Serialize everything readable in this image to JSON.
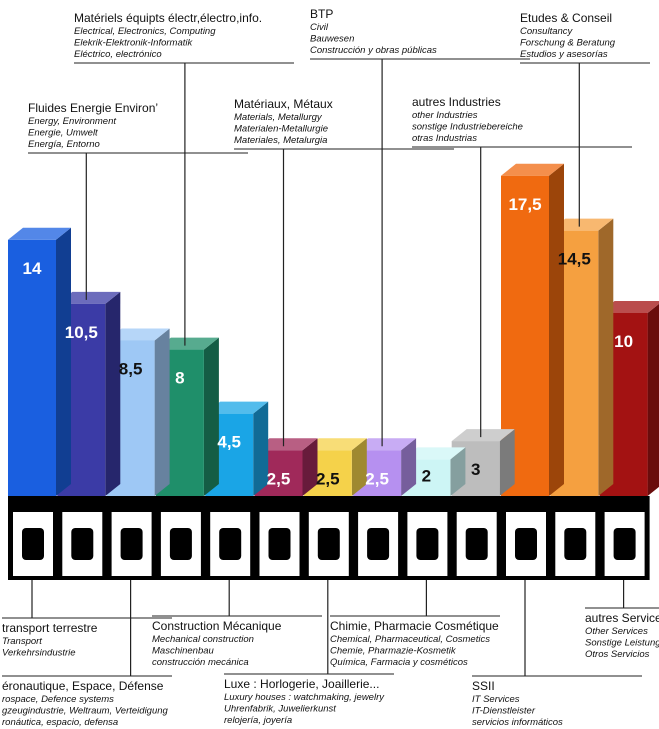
{
  "chart_data": {
    "type": "bar",
    "categories": [
      "transport terrestre",
      "Fluides Energie Environ’",
      "éronautique, Espace, Défense",
      "Matériels équipts électr,électro,info.",
      "Construction Mécanique",
      "Matériaux, Métaux",
      "Luxe : Horlogerie, Joaillerie...",
      "BTP",
      "Chimie, Pharmacie Cosmétique",
      "autres Industries",
      "SSII",
      "Etudes & Conseil",
      "autres Services"
    ],
    "category_notes": [
      [
        "Transport",
        "Verkehrsindustrie"
      ],
      [
        "Energy, Environment",
        "Energie, Umwelt",
        "Energía, Entorno"
      ],
      [
        "rospace, Defence systems",
        "gzeugindustrie, Weltraum, Verteidigung",
        "ronáutica, espacio, defensa"
      ],
      [
        "Electrical, Electronics, Computing",
        "Elekrik-Elektronik-Informatik",
        "Eléctrico, electrónico"
      ],
      [
        "Mechanical construction",
        "Maschinenbau",
        "construcción mecánica"
      ],
      [
        "Materials, Metallurgy",
        "Materialen-Metallurgie",
        "Materiales, Metalurgia"
      ],
      [
        "Luxury houses : watchmaking, jewelry",
        "Uhrenfabrik, Juwelierkunst",
        "relojería, joyería"
      ],
      [
        "Civil",
        "Bauwesen",
        "Construcción y obras públicas"
      ],
      [
        "Chemical, Pharmaceutical, Cosmetics",
        "Chemie, Pharmazie-Kosmetik",
        "Química, Farmacia y cosméticos"
      ],
      [
        "other Industries",
        "sonstige Industriebereiche",
        "otras Industrias"
      ],
      [
        "IT Services",
        "IT-Dienstleister",
        "servicios informáticos"
      ],
      [
        "Consultancy",
        "Forschung & Beratung",
        "Estudios y asesorías"
      ],
      [
        "Other Services",
        "Sonstige Leistungen",
        "Otros Servicios"
      ]
    ],
    "values": [
      14,
      10.5,
      8.5,
      8,
      4.5,
      2.5,
      2.5,
      2.5,
      2,
      3,
      17.5,
      14.5,
      10
    ],
    "value_labels": [
      "14",
      "10,5",
      "8,5",
      "8",
      "4,5",
      "2,5",
      "2,5",
      "2,5",
      "2",
      "3",
      "17,5",
      "14,5",
      "10"
    ],
    "colors": [
      "#1a5fe0",
      "#3b3ba6",
      "#9ec8f5",
      "#1f8f6a",
      "#1aa5e6",
      "#a0295a",
      "#f5d24a",
      "#b690f0",
      "#cdf5f5",
      "#bdbdbd",
      "#f06a10",
      "#f5a040",
      "#a31212"
    ]
  }
}
